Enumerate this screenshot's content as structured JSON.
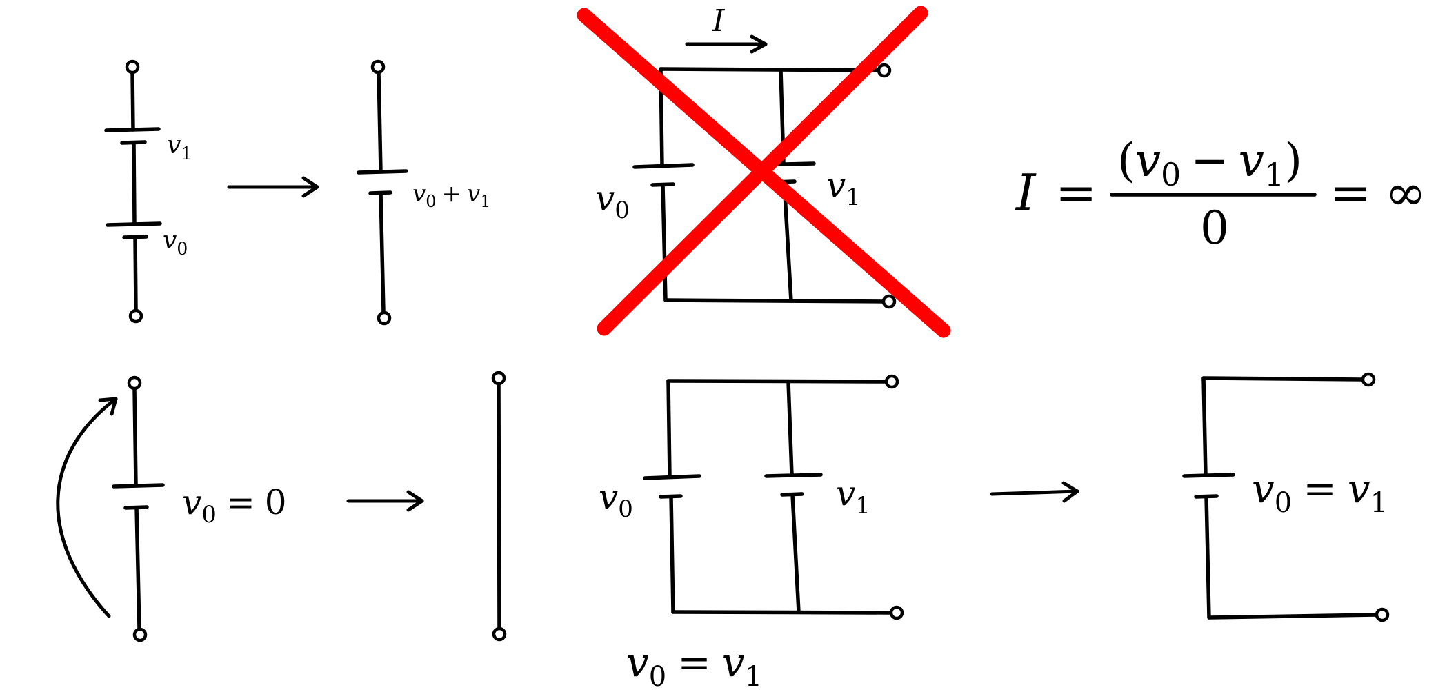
{
  "panels": {
    "series_pair": {
      "upper_label": {
        "var": "v",
        "sub": "1"
      },
      "lower_label": {
        "var": "v",
        "sub": "0"
      }
    },
    "series_combined": {
      "label": {
        "a": "v",
        "a_sub": "0",
        "op": "+",
        "b": "v",
        "b_sub": "1"
      }
    },
    "parallel_unequal": {
      "left_label": {
        "var": "v",
        "sub": "0"
      },
      "right_label": {
        "var": "v",
        "sub": "1"
      },
      "current_label": "I",
      "crossed_out_color": "#ff0000"
    },
    "current_equation": {
      "lhs": "I",
      "eq1": "=",
      "numerator": {
        "open": "(",
        "a": "v",
        "a_sub": "0",
        "op": "−",
        "b": "v",
        "b_sub": "1",
        "close": ")"
      },
      "denominator": "0",
      "eq2": "=",
      "result": "∞"
    },
    "zero_source": {
      "label": {
        "var": "v",
        "sub": "0",
        "eq": "=",
        "value": "0"
      }
    },
    "parallel_equal": {
      "left_label": {
        "var": "v",
        "sub": "0"
      },
      "right_label": {
        "var": "v",
        "sub": "1"
      },
      "condition": {
        "a": "v",
        "a_sub": "0",
        "eq": "=",
        "b": "v",
        "b_sub": "1"
      }
    },
    "single_equal": {
      "label": {
        "a": "v",
        "a_sub": "0",
        "eq": "=",
        "b": "v",
        "b_sub": "1"
      }
    }
  }
}
